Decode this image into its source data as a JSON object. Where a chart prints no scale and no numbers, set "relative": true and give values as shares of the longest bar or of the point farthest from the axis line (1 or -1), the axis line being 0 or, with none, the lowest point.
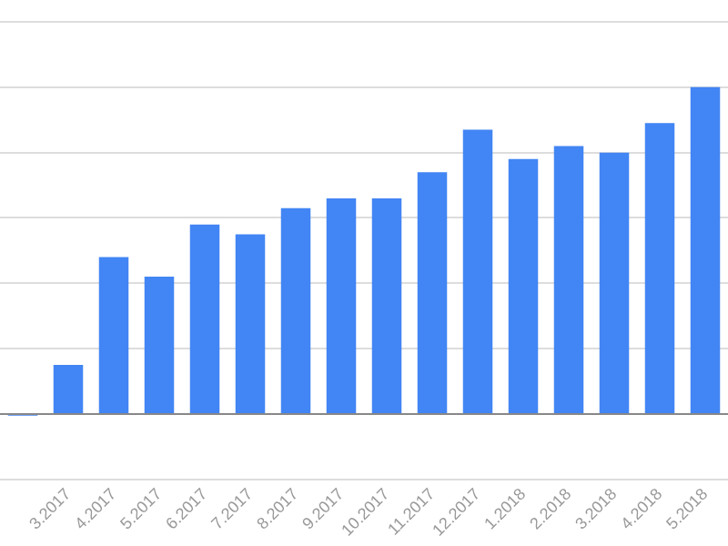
{
  "chart_data": {
    "type": "bar",
    "relative": true,
    "grid": "y",
    "color": "#4285f4",
    "categories": [
      null,
      "3.2017",
      "4.2017",
      "5.2017",
      "6.2017",
      "7.2017",
      "8.2017",
      "9.2017",
      "10.2017",
      "11.2017",
      "12.2017",
      "1.2018",
      "2.2018",
      "3.2018",
      "4.2018",
      "5.2018"
    ],
    "values": [
      -0.005,
      0.15,
      0.48,
      0.42,
      0.58,
      0.55,
      0.63,
      0.66,
      0.66,
      0.74,
      0.87,
      0.78,
      0.82,
      0.8,
      0.89,
      1
    ]
  }
}
